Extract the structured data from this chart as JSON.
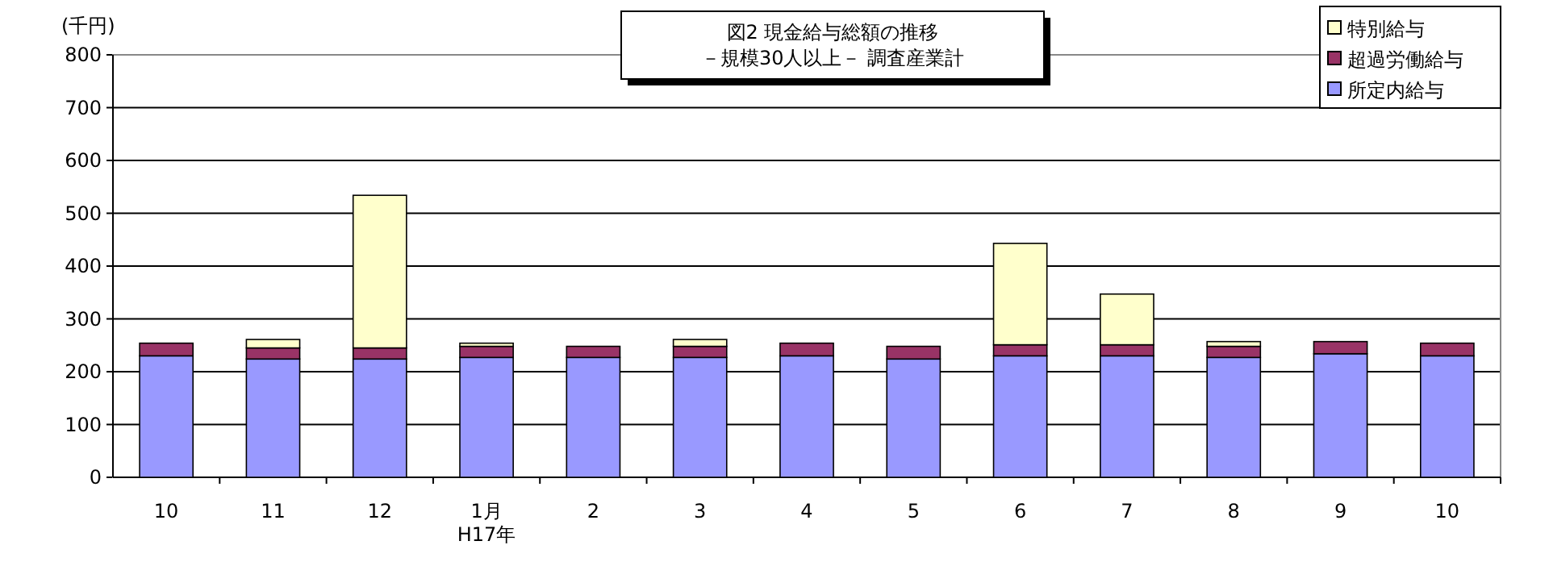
{
  "chart_data": {
    "type": "bar",
    "stacked": true,
    "title": "図2 現金給与総額の推移",
    "subtitle": "－規模30人以上－ 調査産業計",
    "ylabel": "(千円)",
    "categories": [
      "10",
      "11",
      "12",
      "1月\nH17年",
      "2",
      "3",
      "4",
      "5",
      "6",
      "7",
      "8",
      "9",
      "10"
    ],
    "series": [
      {
        "name": "所定内給与",
        "color": "#9999ff",
        "values": [
          230,
          224,
          224,
          227,
          227,
          227,
          230,
          224,
          230,
          230,
          227,
          234,
          230
        ]
      },
      {
        "name": "超過労働給与",
        "color": "#993366",
        "values": [
          24,
          21,
          21,
          21,
          21,
          21,
          24,
          24,
          21,
          21,
          21,
          23,
          24
        ]
      },
      {
        "name": "特別給与",
        "color": "#ffffcc",
        "values": [
          0,
          16,
          289,
          6,
          0,
          13,
          0,
          0,
          192,
          96,
          9,
          0,
          0
        ]
      }
    ],
    "ylim": [
      0,
      800
    ],
    "yticks": [
      0,
      100,
      200,
      300,
      400,
      500,
      600,
      700,
      800
    ],
    "grid": "y",
    "legend": "top right"
  }
}
